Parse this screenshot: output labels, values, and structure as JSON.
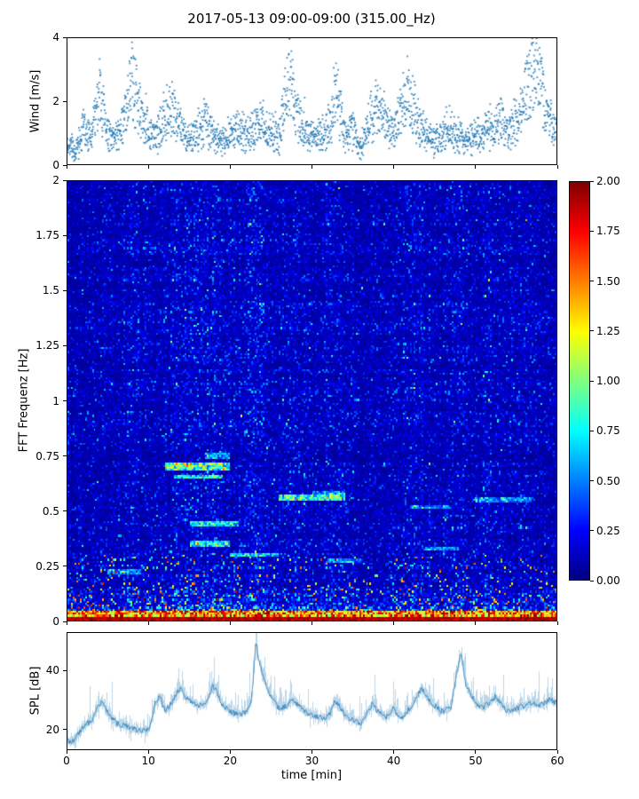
{
  "title": "2017-05-13 09:00-09:00 (315.00_Hz)",
  "accent_color": "#1f77b4",
  "chart_data": [
    {
      "type": "scatter",
      "name": "wind-speed",
      "ylabel": "Wind [m/s]",
      "xlim": [
        0,
        60
      ],
      "ylim": [
        0,
        4
      ],
      "yticks": [
        0,
        2,
        4
      ],
      "ytick_labels": [
        "0",
        "2",
        "4"
      ],
      "marker_color": "#1f77b4",
      "n_points": 2300,
      "seed": 42,
      "profile": [
        [
          0,
          0.8
        ],
        [
          1,
          0.5
        ],
        [
          2,
          1.3
        ],
        [
          3,
          1.0
        ],
        [
          3.8,
          2.8
        ],
        [
          4.2,
          2.4
        ],
        [
          5,
          1.1
        ],
        [
          6,
          1.0
        ],
        [
          7,
          1.6
        ],
        [
          7.8,
          3.3
        ],
        [
          8.5,
          2.6
        ],
        [
          9,
          2.0
        ],
        [
          10,
          1.3
        ],
        [
          11,
          1.1
        ],
        [
          12,
          1.9
        ],
        [
          13,
          2.1
        ],
        [
          14,
          1.3
        ],
        [
          15,
          1.0
        ],
        [
          16,
          1.2
        ],
        [
          17,
          1.7
        ],
        [
          18,
          1.1
        ],
        [
          19,
          0.9
        ],
        [
          20,
          1.2
        ],
        [
          21,
          1.4
        ],
        [
          22,
          1.1
        ],
        [
          23,
          1.3
        ],
        [
          24,
          1.6
        ],
        [
          25,
          1.2
        ],
        [
          26,
          1.1
        ],
        [
          26.8,
          2.6
        ],
        [
          27.4,
          3.6
        ],
        [
          28,
          2.0
        ],
        [
          29,
          1.3
        ],
        [
          30,
          1.1
        ],
        [
          31,
          1.0
        ],
        [
          32,
          1.4
        ],
        [
          33,
          2.7
        ],
        [
          33.6,
          1.8
        ],
        [
          34,
          1.1
        ],
        [
          35,
          1.3
        ],
        [
          36,
          0.6
        ],
        [
          37,
          1.6
        ],
        [
          38,
          2.3
        ],
        [
          39,
          1.7
        ],
        [
          40,
          1.4
        ],
        [
          41,
          2.0
        ],
        [
          41.8,
          2.9
        ],
        [
          42.5,
          2.2
        ],
        [
          43,
          1.6
        ],
        [
          44,
          1.2
        ],
        [
          45,
          0.9
        ],
        [
          46,
          1.1
        ],
        [
          47,
          1.3
        ],
        [
          48,
          1.1
        ],
        [
          49,
          0.9
        ],
        [
          50,
          1.2
        ],
        [
          51,
          1.1
        ],
        [
          52,
          1.4
        ],
        [
          53,
          1.7
        ],
        [
          54,
          1.3
        ],
        [
          55,
          1.6
        ],
        [
          56,
          2.4
        ],
        [
          57,
          3.4
        ],
        [
          57.6,
          3.8
        ],
        [
          58.2,
          2.8
        ],
        [
          59,
          1.7
        ],
        [
          60,
          1.2
        ]
      ]
    },
    {
      "type": "heatmap",
      "name": "fft-spectrogram",
      "ylabel": "FFT Frequenz [Hz]",
      "xlim": [
        0,
        60
      ],
      "ylim": [
        0,
        2
      ],
      "yticks": [
        0,
        0.25,
        0.5,
        0.75,
        1,
        1.25,
        1.5,
        1.75,
        2
      ],
      "ytick_labels": [
        "0",
        "0.25",
        "0.5",
        "0.75",
        "1",
        "1.25",
        "1.5",
        "1.75",
        "2"
      ],
      "colormap": "jet",
      "clim": [
        0,
        2
      ],
      "colorbar_ticks": [
        "2.00",
        "1.75",
        "1.50",
        "1.25",
        "1.00",
        "0.75",
        "0.50",
        "0.25",
        "0.00"
      ],
      "nx": 280,
      "ny": 220,
      "seed": 7,
      "base_noise": 0.09,
      "low_freq_boost": 3.2,
      "column_bumps": [
        {
          "t": 8,
          "sigma": 1.2,
          "amp": 0.35
        },
        {
          "t": 16,
          "sigma": 3.0,
          "amp": 0.55
        },
        {
          "t": 23,
          "sigma": 1.5,
          "amp": 0.5
        },
        {
          "t": 28,
          "sigma": 1.2,
          "amp": 0.35
        },
        {
          "t": 33,
          "sigma": 1.2,
          "amp": 0.4
        },
        {
          "t": 43,
          "sigma": 1.5,
          "amp": 0.4
        },
        {
          "t": 48,
          "sigma": 1.0,
          "amp": 0.35
        },
        {
          "t": 53,
          "sigma": 2.0,
          "amp": 0.35
        }
      ],
      "streaks": [
        {
          "t0": 12,
          "t1": 20,
          "f": 0.7,
          "fw": 0.018,
          "amp": 0.9
        },
        {
          "t0": 13,
          "t1": 19,
          "f": 0.655,
          "fw": 0.012,
          "amp": 0.7
        },
        {
          "t0": 17,
          "t1": 20,
          "f": 0.75,
          "fw": 0.01,
          "amp": 0.5
        },
        {
          "t0": 26,
          "t1": 34,
          "f": 0.56,
          "fw": 0.014,
          "amp": 0.8
        },
        {
          "t0": 30,
          "t1": 34,
          "f": 0.585,
          "fw": 0.01,
          "amp": 0.5
        },
        {
          "t0": 15,
          "t1": 21,
          "f": 0.44,
          "fw": 0.012,
          "amp": 0.6
        },
        {
          "t0": 15,
          "t1": 20,
          "f": 0.35,
          "fw": 0.014,
          "amp": 0.65
        },
        {
          "t0": 20,
          "t1": 26,
          "f": 0.3,
          "fw": 0.012,
          "amp": 0.6
        },
        {
          "t0": 42,
          "t1": 47,
          "f": 0.52,
          "fw": 0.01,
          "amp": 0.45
        },
        {
          "t0": 50,
          "t1": 57,
          "f": 0.55,
          "fw": 0.012,
          "amp": 0.5
        },
        {
          "t0": 44,
          "t1": 48,
          "f": 0.33,
          "fw": 0.01,
          "amp": 0.5
        },
        {
          "t0": 5,
          "t1": 9,
          "f": 0.22,
          "fw": 0.012,
          "amp": 0.5
        },
        {
          "t0": 32,
          "t1": 36,
          "f": 0.27,
          "fw": 0.01,
          "amp": 0.5
        }
      ]
    },
    {
      "type": "line",
      "name": "spl",
      "ylabel": "SPL [dB]",
      "xlabel": "time [min]",
      "xlim": [
        0,
        60
      ],
      "ylim": [
        13,
        53
      ],
      "yticks": [
        20,
        40
      ],
      "ytick_labels": [
        "20",
        "40"
      ],
      "xticks": [
        0,
        10,
        20,
        30,
        40,
        50,
        60
      ],
      "xtick_labels": [
        "0",
        "10",
        "20",
        "30",
        "40",
        "50",
        "60"
      ],
      "line_color": "#1f77b4",
      "seed": 99,
      "profile": [
        [
          0,
          16
        ],
        [
          0.5,
          15.5
        ],
        [
          1,
          17
        ],
        [
          2,
          21
        ],
        [
          3,
          23
        ],
        [
          3.8,
          28
        ],
        [
          4.3,
          29
        ],
        [
          5,
          25
        ],
        [
          6,
          22
        ],
        [
          7,
          21
        ],
        [
          8,
          20
        ],
        [
          9,
          19.5
        ],
        [
          10,
          20
        ],
        [
          10.8,
          29
        ],
        [
          11.3,
          31
        ],
        [
          12,
          26
        ],
        [
          12.8,
          29
        ],
        [
          13.5,
          33
        ],
        [
          14,
          34
        ],
        [
          14.5,
          31
        ],
        [
          15,
          30
        ],
        [
          16,
          28
        ],
        [
          17,
          29
        ],
        [
          17.8,
          35
        ],
        [
          18.3,
          33
        ],
        [
          19,
          28
        ],
        [
          20,
          26
        ],
        [
          21,
          25
        ],
        [
          22,
          26
        ],
        [
          22.6,
          30
        ],
        [
          23.1,
          50
        ],
        [
          23.5,
          43
        ],
        [
          24,
          38
        ],
        [
          24.5,
          34
        ],
        [
          25,
          31
        ],
        [
          26,
          27
        ],
        [
          27,
          28
        ],
        [
          27.5,
          30
        ],
        [
          28,
          29
        ],
        [
          29,
          26
        ],
        [
          30,
          25
        ],
        [
          31,
          24
        ],
        [
          32,
          24
        ],
        [
          32.8,
          30
        ],
        [
          33.3,
          28
        ],
        [
          34,
          25
        ],
        [
          35,
          23
        ],
        [
          36,
          22
        ],
        [
          37,
          27
        ],
        [
          37.5,
          29
        ],
        [
          38,
          26
        ],
        [
          39,
          24
        ],
        [
          40,
          27
        ],
        [
          40.5,
          25
        ],
        [
          41,
          24
        ],
        [
          42,
          27
        ],
        [
          43,
          32
        ],
        [
          43.5,
          34
        ],
        [
          44,
          31
        ],
        [
          45,
          28
        ],
        [
          46,
          26
        ],
        [
          47,
          27
        ],
        [
          47.8,
          40
        ],
        [
          48.3,
          46
        ],
        [
          48.8,
          36
        ],
        [
          49.5,
          32
        ],
        [
          50,
          29
        ],
        [
          51,
          27
        ],
        [
          52,
          30
        ],
        [
          52.5,
          31
        ],
        [
          53,
          29
        ],
        [
          54,
          26
        ],
        [
          55,
          27
        ],
        [
          56,
          28
        ],
        [
          57,
          29
        ],
        [
          58,
          28
        ],
        [
          59,
          30
        ],
        [
          60,
          29
        ]
      ]
    }
  ]
}
